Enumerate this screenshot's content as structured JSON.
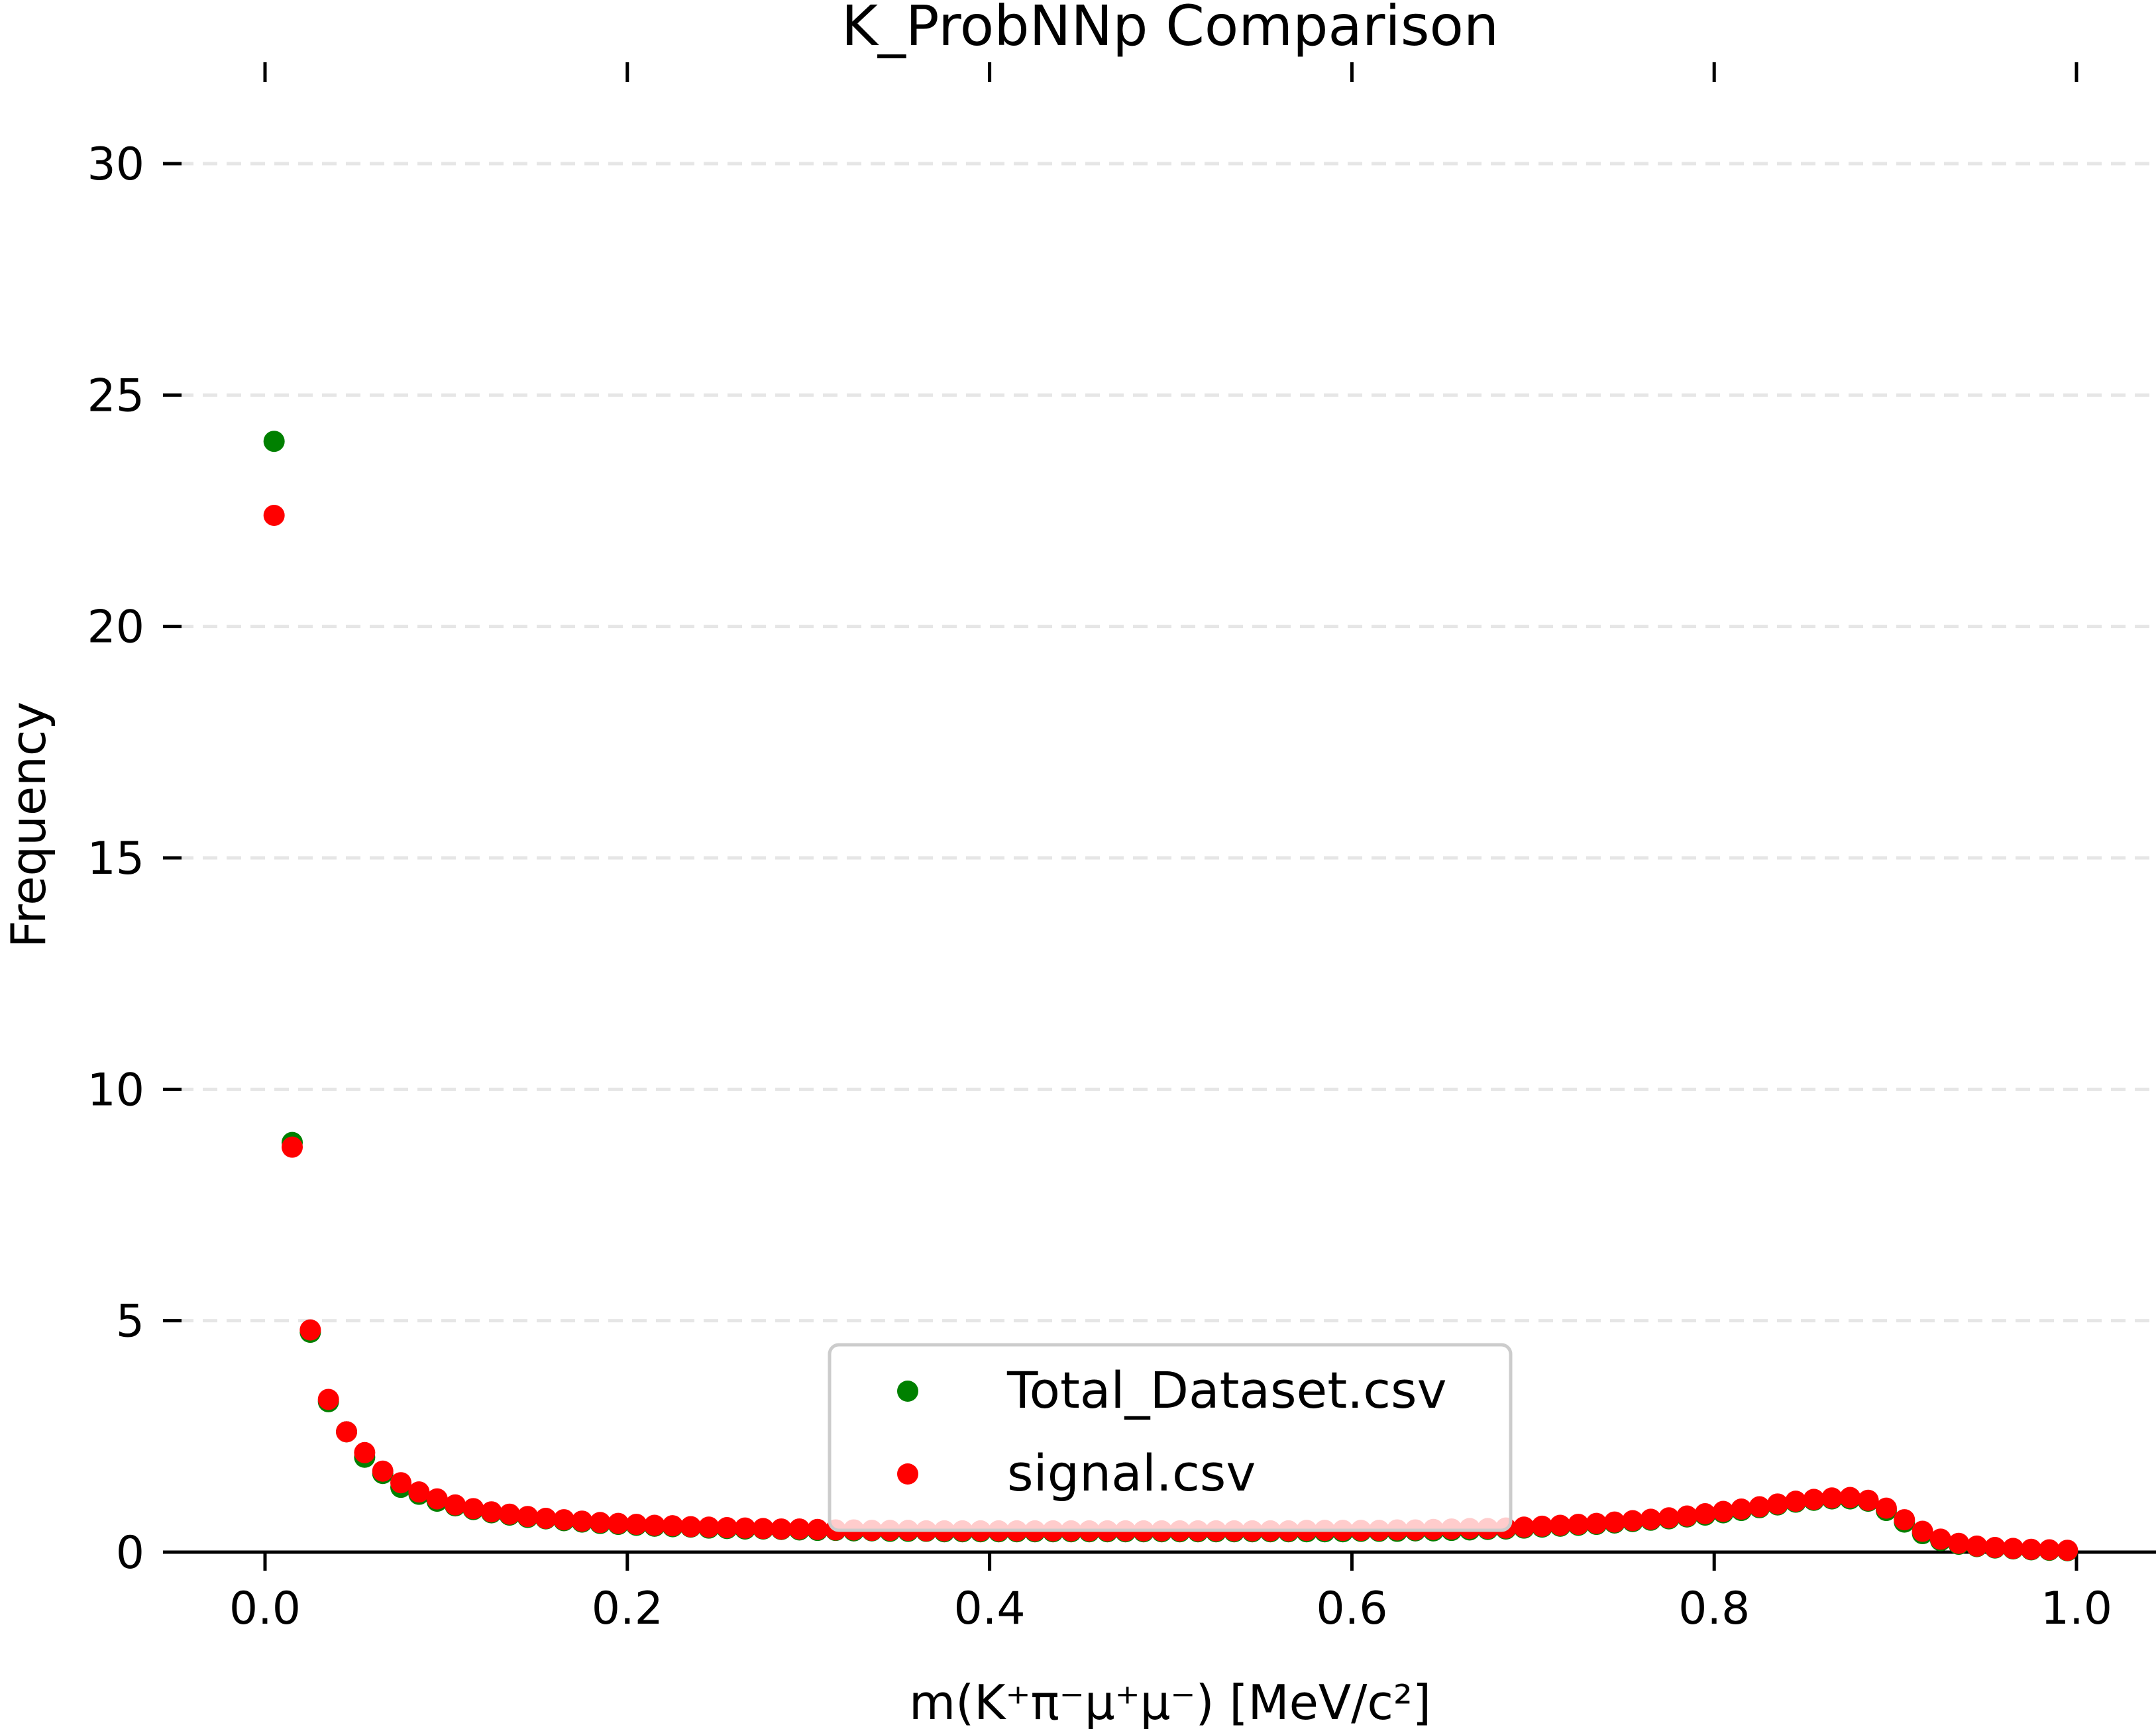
{
  "chart_data": {
    "type": "scatter",
    "title": "K_ProbNNp Comparison",
    "xlabel": "m(K⁺π⁻μ⁺μ⁻) [MeV/c²]",
    "ylabel": "Frequency",
    "xlim": [
      -0.05,
      1.05
    ],
    "ylim": [
      0,
      32
    ],
    "xticks": [
      0.0,
      0.2,
      0.4,
      0.6,
      0.8,
      1.0
    ],
    "xtick_labels": [
      "0.0",
      "0.2",
      "0.4",
      "0.6",
      "0.8",
      "1.0"
    ],
    "yticks": [
      0,
      5,
      10,
      15,
      20,
      25,
      30
    ],
    "ytick_labels": [
      "0",
      "5",
      "10",
      "15",
      "20",
      "25",
      "30"
    ],
    "grid": "horizontal-dashed",
    "legend_position": "lower-center",
    "series": [
      {
        "name": "Total_Dataset.csv",
        "color": "#008000",
        "x": [
          0.005,
          0.015,
          0.025,
          0.035,
          0.045,
          0.055,
          0.065,
          0.075,
          0.085,
          0.095,
          0.105,
          0.115,
          0.125,
          0.135,
          0.145,
          0.155,
          0.165,
          0.175,
          0.185,
          0.195,
          0.205,
          0.215,
          0.225,
          0.235,
          0.245,
          0.255,
          0.265,
          0.275,
          0.285,
          0.295,
          0.305,
          0.315,
          0.325,
          0.335,
          0.345,
          0.355,
          0.365,
          0.375,
          0.385,
          0.395,
          0.405,
          0.415,
          0.425,
          0.435,
          0.445,
          0.455,
          0.465,
          0.475,
          0.485,
          0.495,
          0.505,
          0.515,
          0.525,
          0.535,
          0.545,
          0.555,
          0.565,
          0.575,
          0.585,
          0.595,
          0.605,
          0.615,
          0.625,
          0.635,
          0.645,
          0.655,
          0.665,
          0.675,
          0.685,
          0.695,
          0.705,
          0.715,
          0.725,
          0.735,
          0.745,
          0.755,
          0.765,
          0.775,
          0.785,
          0.795,
          0.805,
          0.815,
          0.825,
          0.835,
          0.845,
          0.855,
          0.865,
          0.875,
          0.885,
          0.895,
          0.905,
          0.915,
          0.925,
          0.935,
          0.945,
          0.955,
          0.965,
          0.975,
          0.985,
          0.995
        ],
        "y": [
          24.0,
          8.85,
          4.75,
          3.25,
          2.6,
          2.05,
          1.7,
          1.4,
          1.25,
          1.1,
          1.0,
          0.92,
          0.85,
          0.8,
          0.75,
          0.72,
          0.68,
          0.65,
          0.62,
          0.6,
          0.58,
          0.56,
          0.55,
          0.54,
          0.52,
          0.51,
          0.5,
          0.5,
          0.49,
          0.48,
          0.47,
          0.47,
          0.46,
          0.46,
          0.45,
          0.45,
          0.45,
          0.44,
          0.44,
          0.44,
          0.44,
          0.44,
          0.44,
          0.44,
          0.44,
          0.44,
          0.44,
          0.44,
          0.44,
          0.44,
          0.44,
          0.44,
          0.44,
          0.44,
          0.44,
          0.44,
          0.44,
          0.44,
          0.44,
          0.44,
          0.45,
          0.45,
          0.45,
          0.46,
          0.46,
          0.47,
          0.48,
          0.49,
          0.5,
          0.52,
          0.54,
          0.56,
          0.58,
          0.6,
          0.63,
          0.66,
          0.69,
          0.72,
          0.76,
          0.8,
          0.85,
          0.9,
          0.96,
          1.02,
          1.08,
          1.12,
          1.15,
          1.15,
          1.1,
          0.9,
          0.65,
          0.4,
          0.25,
          0.17,
          0.12,
          0.09,
          0.07,
          0.05,
          0.04,
          0.03
        ]
      },
      {
        "name": "signal.csv",
        "color": "#ff0000",
        "x": [
          0.005,
          0.015,
          0.025,
          0.035,
          0.045,
          0.055,
          0.065,
          0.075,
          0.085,
          0.095,
          0.105,
          0.115,
          0.125,
          0.135,
          0.145,
          0.155,
          0.165,
          0.175,
          0.185,
          0.195,
          0.205,
          0.215,
          0.225,
          0.235,
          0.245,
          0.255,
          0.265,
          0.275,
          0.285,
          0.295,
          0.305,
          0.315,
          0.325,
          0.335,
          0.345,
          0.355,
          0.365,
          0.375,
          0.385,
          0.395,
          0.405,
          0.415,
          0.425,
          0.435,
          0.445,
          0.455,
          0.465,
          0.475,
          0.485,
          0.495,
          0.505,
          0.515,
          0.525,
          0.535,
          0.545,
          0.555,
          0.565,
          0.575,
          0.585,
          0.595,
          0.605,
          0.615,
          0.625,
          0.635,
          0.645,
          0.655,
          0.665,
          0.675,
          0.685,
          0.695,
          0.705,
          0.715,
          0.725,
          0.735,
          0.745,
          0.755,
          0.765,
          0.775,
          0.785,
          0.795,
          0.805,
          0.815,
          0.825,
          0.835,
          0.845,
          0.855,
          0.865,
          0.875,
          0.885,
          0.895,
          0.905,
          0.915,
          0.925,
          0.935,
          0.945,
          0.955,
          0.965,
          0.975,
          0.985,
          0.995
        ],
        "y": [
          22.4,
          8.75,
          4.8,
          3.3,
          2.6,
          2.15,
          1.75,
          1.5,
          1.3,
          1.15,
          1.02,
          0.94,
          0.87,
          0.82,
          0.77,
          0.73,
          0.7,
          0.67,
          0.64,
          0.62,
          0.6,
          0.58,
          0.57,
          0.55,
          0.54,
          0.53,
          0.52,
          0.51,
          0.5,
          0.5,
          0.49,
          0.48,
          0.48,
          0.47,
          0.47,
          0.47,
          0.46,
          0.46,
          0.46,
          0.46,
          0.46,
          0.46,
          0.46,
          0.46,
          0.46,
          0.46,
          0.46,
          0.46,
          0.46,
          0.46,
          0.46,
          0.46,
          0.46,
          0.46,
          0.46,
          0.46,
          0.46,
          0.47,
          0.47,
          0.47,
          0.47,
          0.47,
          0.48,
          0.48,
          0.49,
          0.5,
          0.51,
          0.51,
          0.52,
          0.54,
          0.56,
          0.58,
          0.6,
          0.62,
          0.65,
          0.68,
          0.71,
          0.74,
          0.78,
          0.83,
          0.88,
          0.93,
          0.98,
          1.04,
          1.1,
          1.14,
          1.17,
          1.18,
          1.12,
          0.95,
          0.7,
          0.45,
          0.28,
          0.19,
          0.13,
          0.1,
          0.08,
          0.06,
          0.05,
          0.04
        ]
      }
    ]
  }
}
